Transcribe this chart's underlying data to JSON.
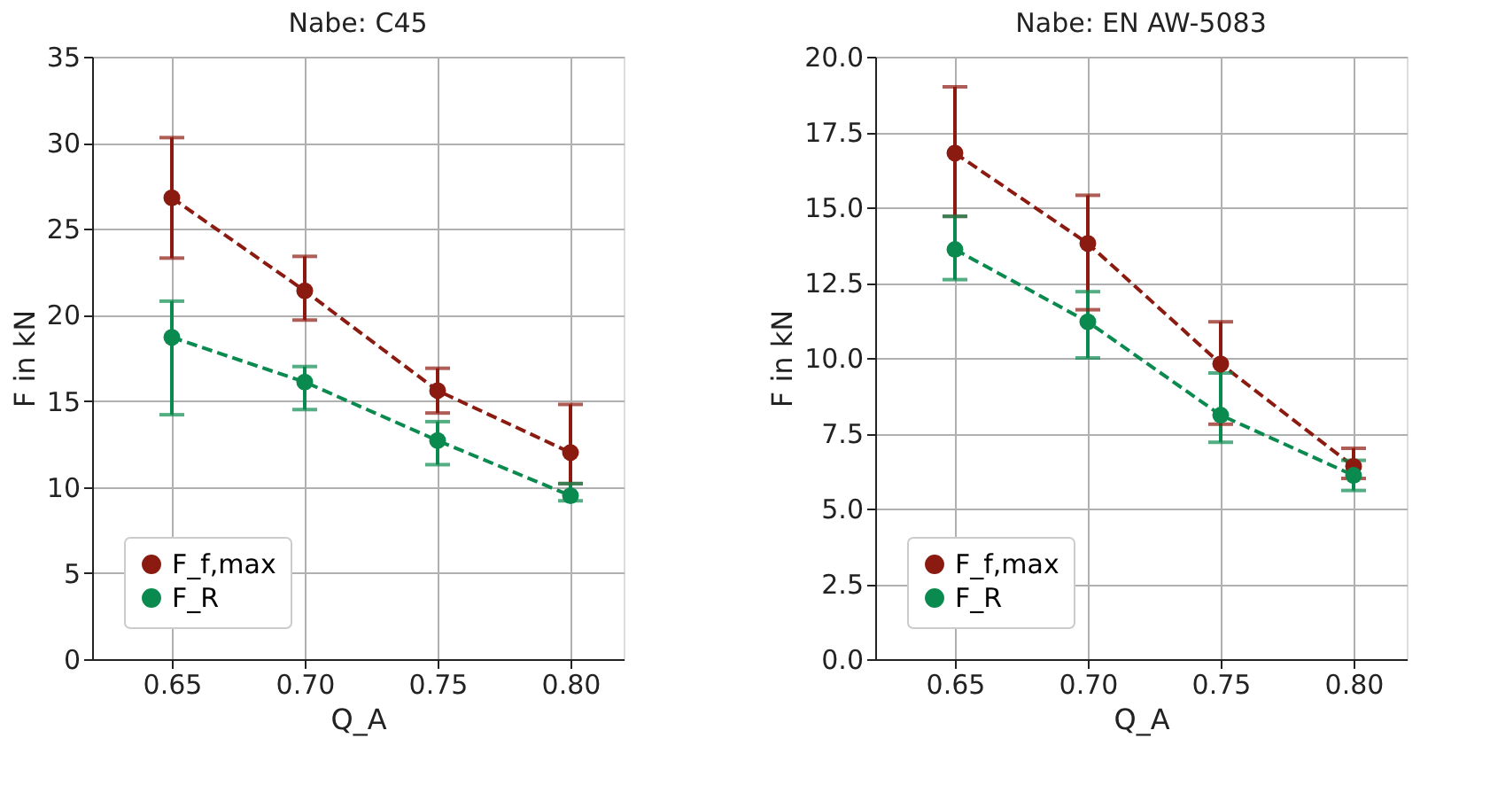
{
  "chart_data": [
    {
      "type": "line",
      "title": "Nabe: C45",
      "xlabel": "Q_A",
      "ylabel": "F in kN",
      "x": [
        0.65,
        0.7,
        0.75,
        0.8
      ],
      "series": [
        {
          "name": "F_f,max",
          "color": "#8b1a10",
          "values": [
            26.8,
            21.4,
            15.6,
            12.0
          ],
          "errors": [
            [
              23.3,
              30.3
            ],
            [
              19.7,
              23.4
            ],
            [
              14.3,
              16.9
            ],
            [
              10.2,
              14.8
            ]
          ]
        },
        {
          "name": "F_R",
          "color": "#0b8a4f",
          "values": [
            18.7,
            16.1,
            12.7,
            9.5
          ],
          "errors": [
            [
              14.2,
              20.8
            ],
            [
              14.5,
              17.0
            ],
            [
              11.3,
              13.8
            ],
            [
              9.2,
              10.2
            ]
          ]
        }
      ],
      "xlim": [
        0.62,
        0.82
      ],
      "xticks": [
        {
          "value": 0.65,
          "label": "0.65"
        },
        {
          "value": 0.7,
          "label": "0.70"
        },
        {
          "value": 0.75,
          "label": "0.75"
        },
        {
          "value": 0.8,
          "label": "0.80"
        }
      ],
      "ylim": [
        0,
        35
      ],
      "yticks": [
        0,
        5,
        10,
        15,
        20,
        25,
        30,
        35
      ],
      "grid": true,
      "legend": "bottom left",
      "marker": "circle",
      "line_style": "dashed"
    },
    {
      "type": "line",
      "title": "Nabe: EN AW-5083",
      "xlabel": "Q_A",
      "ylabel": "F in kN",
      "x": [
        0.65,
        0.7,
        0.75,
        0.8
      ],
      "series": [
        {
          "name": "F_f,max",
          "color": "#8b1a10",
          "values": [
            16.8,
            13.8,
            9.8,
            6.4
          ],
          "errors": [
            [
              14.7,
              19.0
            ],
            [
              11.6,
              15.4
            ],
            [
              7.8,
              11.2
            ],
            [
              6.0,
              7.0
            ]
          ]
        },
        {
          "name": "F_R",
          "color": "#0b8a4f",
          "values": [
            13.6,
            11.2,
            8.1,
            6.1
          ],
          "errors": [
            [
              12.6,
              14.7
            ],
            [
              10.0,
              12.2
            ],
            [
              7.2,
              9.5
            ],
            [
              5.6,
              6.6
            ]
          ]
        }
      ],
      "xlim": [
        0.62,
        0.82
      ],
      "xticks": [
        {
          "value": 0.65,
          "label": "0.65"
        },
        {
          "value": 0.7,
          "label": "0.70"
        },
        {
          "value": 0.75,
          "label": "0.75"
        },
        {
          "value": 0.8,
          "label": "0.80"
        }
      ],
      "ylim": [
        0,
        20
      ],
      "yticks": [
        {
          "value": 0,
          "label": "0.0"
        },
        {
          "value": 2.5,
          "label": "2.5"
        },
        {
          "value": 5,
          "label": "5.0"
        },
        {
          "value": 7.5,
          "label": "7.5"
        },
        {
          "value": 10,
          "label": "10.0"
        },
        {
          "value": 12.5,
          "label": "12.5"
        },
        {
          "value": 15,
          "label": "15.0"
        },
        {
          "value": 17.5,
          "label": "17.5"
        },
        {
          "value": 20,
          "label": "20.0"
        }
      ],
      "grid": true,
      "legend": "bottom left",
      "marker": "circle",
      "line_style": "dashed"
    }
  ]
}
